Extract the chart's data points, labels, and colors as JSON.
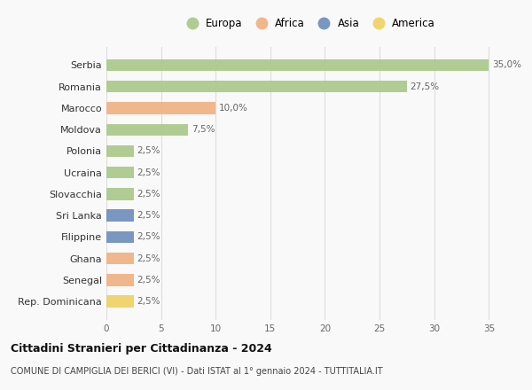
{
  "countries": [
    "Serbia",
    "Romania",
    "Marocco",
    "Moldova",
    "Polonia",
    "Ucraina",
    "Slovacchia",
    "Sri Lanka",
    "Filippine",
    "Ghana",
    "Senegal",
    "Rep. Dominicana"
  ],
  "values": [
    35.0,
    27.5,
    10.0,
    7.5,
    2.5,
    2.5,
    2.5,
    2.5,
    2.5,
    2.5,
    2.5,
    2.5
  ],
  "continents": [
    "Europa",
    "Europa",
    "Africa",
    "Europa",
    "Europa",
    "Europa",
    "Europa",
    "Asia",
    "Asia",
    "Africa",
    "Africa",
    "America"
  ],
  "colors": {
    "Europa": "#a8c888",
    "Africa": "#f0b080",
    "Asia": "#6b8cba",
    "America": "#f0d060"
  },
  "legend_order": [
    "Europa",
    "Africa",
    "Asia",
    "America"
  ],
  "xlim": [
    0,
    37
  ],
  "xticks": [
    0,
    5,
    10,
    15,
    20,
    25,
    30,
    35
  ],
  "title": "Cittadini Stranieri per Cittadinanza - 2024",
  "subtitle": "COMUNE DI CAMPIGLIA DEI BERICI (VI) - Dati ISTAT al 1° gennaio 2024 - TUTTITALIA.IT",
  "background_color": "#f9f9f9",
  "grid_color": "#dddddd",
  "bar_height": 0.55
}
